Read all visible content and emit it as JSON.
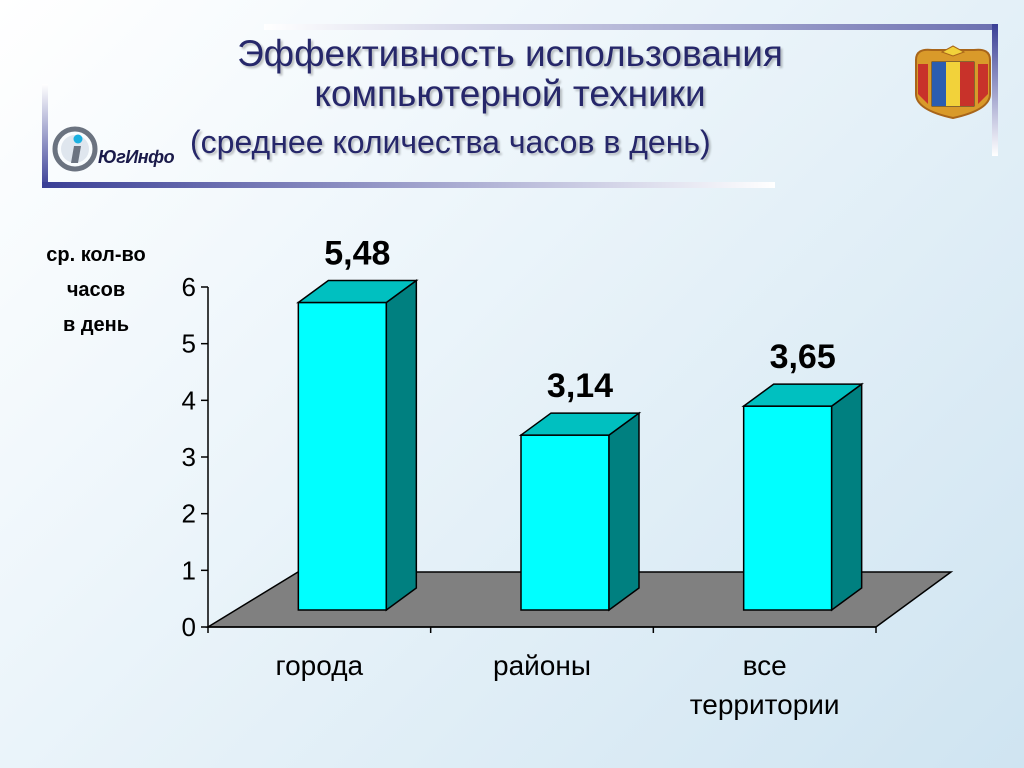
{
  "header": {
    "title_line1": "Эффективность использования",
    "title_line2": "компьютерной техники",
    "subtitle": "(среднее количества часов в день)",
    "logo_text": "ЮгИнфо"
  },
  "colors": {
    "bar_front": "#00ffff",
    "bar_side": "#008080",
    "bar_top": "#00c0c0",
    "floor": "#808080",
    "title": "#26276a"
  },
  "chart_data": {
    "type": "bar",
    "categories": [
      [
        "города"
      ],
      [
        "районы"
      ],
      [
        "все",
        "территории"
      ]
    ],
    "values": [
      5.48,
      3.14,
      3.65
    ],
    "value_labels": [
      "5,48",
      "3,14",
      "3,65"
    ],
    "ylabel_lines": [
      "ср. кол-во",
      "часов",
      "в день"
    ],
    "ylim": [
      0,
      6
    ],
    "yticks": [
      "0",
      "1",
      "2",
      "3",
      "4",
      "5",
      "6"
    ],
    "style": "3d",
    "grid": false,
    "legend": "none"
  }
}
